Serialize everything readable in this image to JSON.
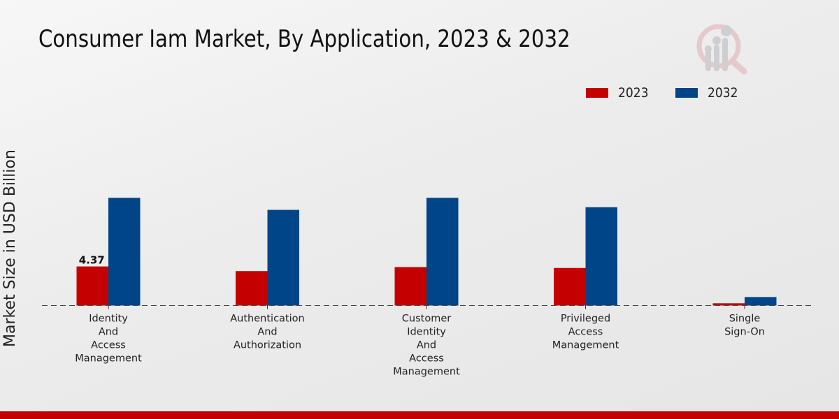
{
  "title": "Consumer Iam Market, By Application, 2023 & 2032",
  "logo": {
    "icon": "market-research-magnifier-logo-icon"
  },
  "chart_data": {
    "type": "bar",
    "title": "Consumer Iam Market, By Application, 2023 & 2032",
    "xlabel": "",
    "ylabel": "Market Size in USD Billion",
    "ylim": [
      0,
      12.5
    ],
    "grid": false,
    "legend_position": "top-right",
    "categories": [
      [
        "Identity",
        "And",
        "Access",
        "Management"
      ],
      [
        "Authentication",
        "And",
        "Authorization"
      ],
      [
        "Customer",
        "Identity",
        "And",
        "Access",
        "Management"
      ],
      [
        "Privileged",
        "Access",
        "Management"
      ],
      [
        "Single",
        "Sign-On"
      ]
    ],
    "series": [
      {
        "name": "2023",
        "color": "#c40000",
        "values": [
          4.37,
          3.85,
          4.3,
          4.2,
          0.25
        ]
      },
      {
        "name": "2032",
        "color": "#004587",
        "values": [
          12.05,
          10.7,
          12.05,
          11.0,
          0.95
        ]
      }
    ],
    "data_labels": [
      {
        "series": "2023",
        "category_index": 0,
        "text": "4.37"
      }
    ]
  }
}
